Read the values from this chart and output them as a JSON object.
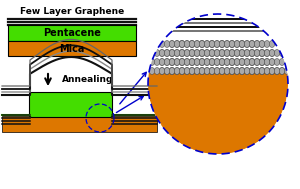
{
  "title": "Few Layer Graphene",
  "pentacene_label": "Pentacene",
  "mica_label": "Mica",
  "annealing_label": "Annealing",
  "graphene_color": "#111111",
  "pentacene_color": "#44dd00",
  "mica_color": "#dd7700",
  "white_bg": "#ffffff",
  "arrow_color": "#0000cc",
  "circle_dashed_color": "#0000cc",
  "black": "#000000",
  "gray_mol": "#aaaaaa",
  "mol_edge": "#444444"
}
